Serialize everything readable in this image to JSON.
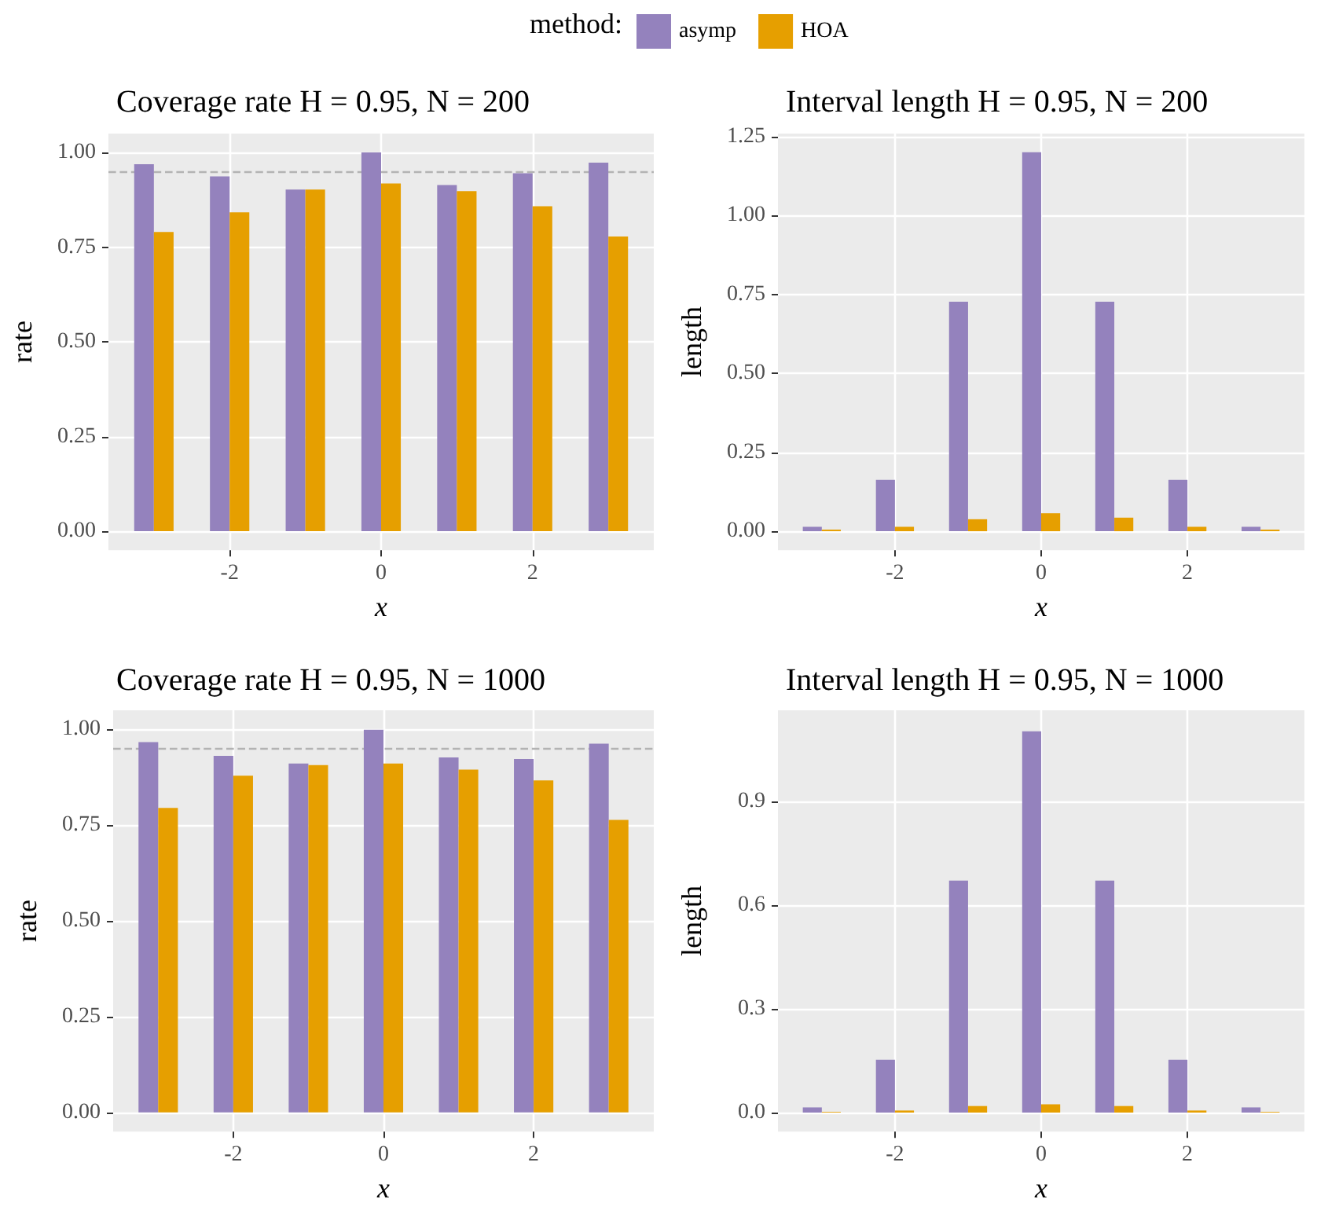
{
  "chart_data": [
    {
      "type": "bar",
      "title": "Coverage rate H = 0.95, N = 200",
      "xlabel": "x",
      "ylabel": "rate",
      "legend": "top",
      "legend_title": "method:",
      "x": [
        -3,
        -2,
        -1,
        0,
        1,
        2,
        3
      ],
      "xlim": [
        -3.6,
        3.6
      ],
      "xticks": [
        -2,
        0,
        2
      ],
      "ylim": [
        -0.05,
        1.05
      ],
      "yticks": [
        {
          "value": 0,
          "label": "0.00"
        },
        0.25,
        {
          "value": 0.5,
          "label": "0.50"
        },
        0.75,
        {
          "value": 1,
          "label": "1.00"
        }
      ],
      "grid": true,
      "series": [
        {
          "name": "asymp",
          "color": "#9482bd",
          "values": [
            0.969,
            0.937,
            0.902,
            1.0,
            0.914,
            0.945,
            0.973
          ]
        },
        {
          "name": "HOA",
          "color": "#e69f00",
          "values": [
            0.79,
            0.842,
            0.902,
            0.918,
            0.898,
            0.858,
            0.778
          ]
        }
      ],
      "ref_lines": [
        {
          "axis": "y",
          "value": 0.95,
          "color": "#b3b3b3",
          "line_style": "dashed"
        }
      ]
    },
    {
      "type": "bar",
      "title": "Interval length H = 0.95, N = 200",
      "xlabel": "x",
      "ylabel": "length",
      "x": [
        -3,
        -2,
        -1,
        0,
        1,
        2,
        3
      ],
      "xlim": [
        -3.6,
        3.6
      ],
      "xticks": [
        -2,
        0,
        2
      ],
      "ylim": [
        -0.06,
        1.26
      ],
      "yticks": [
        {
          "value": 0,
          "label": "0.00"
        },
        0.25,
        {
          "value": 0.5,
          "label": "0.50"
        },
        0.75,
        {
          "value": 1,
          "label": "1.00"
        },
        1.25
      ],
      "grid": true,
      "series": [
        {
          "color": "#9482bd",
          "values": [
            0.014,
            0.163,
            0.727,
            1.201,
            0.727,
            0.163,
            0.014
          ]
        },
        {
          "color": "#e69f00",
          "values": [
            0.005,
            0.014,
            0.038,
            0.057,
            0.043,
            0.014,
            0.005
          ]
        }
      ]
    },
    {
      "type": "bar",
      "title": "Coverage rate H = 0.95, N = 1000",
      "xlabel": "x",
      "ylabel": "rate",
      "x": [
        -3,
        -2,
        -1,
        0,
        1,
        2,
        3
      ],
      "xlim": [
        -3.6,
        3.6
      ],
      "xticks": [
        -2,
        0,
        2
      ],
      "ylim": [
        -0.05,
        1.05
      ],
      "yticks": [
        {
          "value": 0,
          "label": "0.00"
        },
        0.25,
        {
          "value": 0.5,
          "label": "0.50"
        },
        0.75,
        {
          "value": 1,
          "label": "1.00"
        }
      ],
      "grid": true,
      "series": [
        {
          "color": "#9482bd",
          "values": [
            0.967,
            0.931,
            0.911,
            0.999,
            0.927,
            0.923,
            0.963
          ]
        },
        {
          "color": "#e69f00",
          "values": [
            0.795,
            0.879,
            0.907,
            0.911,
            0.895,
            0.867,
            0.764
          ]
        }
      ],
      "ref_lines": [
        {
          "axis": "y",
          "value": 0.95,
          "color": "#b3b3b3",
          "line_style": "dashed"
        }
      ]
    },
    {
      "type": "bar",
      "title": "Interval length H = 0.95, N = 1000",
      "xlabel": "x",
      "ylabel": "length",
      "x": [
        -3,
        -2,
        -1,
        0,
        1,
        2,
        3
      ],
      "xlim": [
        -3.6,
        3.6
      ],
      "xticks": [
        -2,
        0,
        2
      ],
      "ylim": [
        -0.055,
        1.165
      ],
      "yticks": [
        {
          "value": 0,
          "label": "0.0"
        },
        0.3,
        0.6,
        0.9
      ],
      "grid": true,
      "series": [
        {
          "color": "#9482bd",
          "values": [
            0.015,
            0.153,
            0.672,
            1.104,
            0.672,
            0.153,
            0.015
          ]
        },
        {
          "color": "#e69f00",
          "values": [
            0.002,
            0.006,
            0.019,
            0.024,
            0.019,
            0.006,
            0.002
          ]
        }
      ]
    }
  ]
}
